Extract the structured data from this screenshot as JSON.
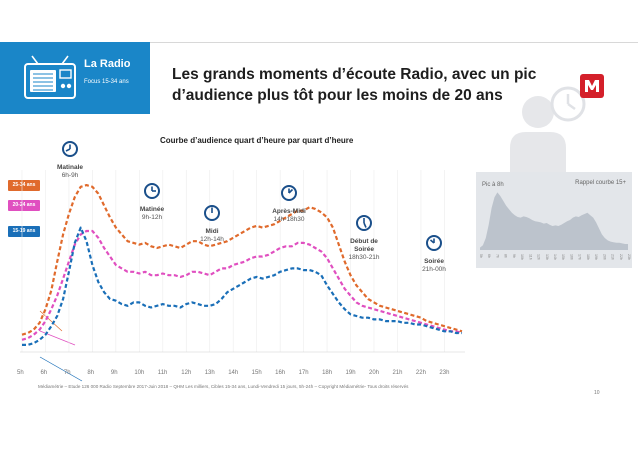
{
  "header": {
    "section_title": "La Radio",
    "section_subtitle": "Focus 15-34 ans",
    "main_title": "Les grands moments d’écoute Radio, avec un pic d’audience plus tôt pour les moins de 20 ans"
  },
  "colors": {
    "band": "#1a86c8",
    "series_25_34": "#e06a2c",
    "series_20_24": "#e04fc0",
    "series_15_19": "#1a6fb8",
    "logo": "#d4202a"
  },
  "moments": [
    {
      "label": "Matinale",
      "hours": "6h-9h"
    },
    {
      "label": "Matinée",
      "hours": "9h-12h"
    },
    {
      "label": "Midi",
      "hours": "12h-14h"
    },
    {
      "label": "Après-Midi",
      "hours": "14h-18h30"
    },
    {
      "label": "Début de Soirée",
      "hours": "18h30-21h"
    },
    {
      "label": "Soirée",
      "hours": "21h-00h"
    }
  ],
  "inset": {
    "left_label": "Pic à 8h",
    "right_label": "Rappel courbe 15+"
  },
  "footnote": "Médiamétrie – Etude 126 000 Radio Septembre 2017-Juin 2018 – QHM Les milliers, Cibles 15-34 ans, Lundi-Vendredi 15 jours, 5h-24h – Copyright Médiamétrie- Tous droits réservés",
  "page_number": "10",
  "chart_data": [
    {
      "type": "line",
      "title": "Courbe d’audience quart d’heure par quart d’heure",
      "x_labels": [
        "5h",
        "6h",
        "7h",
        "8h",
        "9h",
        "10h",
        "11h",
        "12h",
        "13h",
        "14h",
        "15h",
        "16h",
        "17h",
        "18h",
        "19h",
        "20h",
        "21h",
        "22h",
        "23h"
      ],
      "x": [
        5,
        5.25,
        5.5,
        5.75,
        6,
        6.25,
        6.5,
        6.75,
        7,
        7.25,
        7.5,
        7.75,
        8,
        8.25,
        8.5,
        8.75,
        9,
        9.25,
        9.5,
        9.75,
        10,
        10.25,
        10.5,
        10.75,
        11,
        11.25,
        11.5,
        11.75,
        12,
        12.25,
        12.5,
        12.75,
        13,
        13.25,
        13.5,
        13.75,
        14,
        14.25,
        14.5,
        14.75,
        15,
        15.25,
        15.5,
        15.75,
        16,
        16.25,
        16.5,
        16.75,
        17,
        17.25,
        17.5,
        17.75,
        18,
        18.25,
        18.5,
        18.75,
        19,
        19.25,
        19.5,
        19.75,
        20,
        20.25,
        20.5,
        20.75,
        21,
        21.25,
        21.5,
        21.75,
        22,
        22.25,
        22.5,
        22.75,
        23,
        23.25,
        23.5,
        23.75
      ],
      "series": [
        {
          "name": "25-34 ans",
          "values": [
            9,
            10,
            12,
            16,
            24,
            35,
            52,
            68,
            80,
            90,
            96,
            97,
            96,
            92,
            85,
            78,
            72,
            68,
            64,
            63,
            62,
            63,
            61,
            60,
            61,
            62,
            61,
            60,
            62,
            64,
            64,
            62,
            61,
            62,
            63,
            64,
            66,
            68,
            70,
            72,
            73,
            72,
            73,
            74,
            76,
            78,
            80,
            82,
            82,
            84,
            83,
            81,
            78,
            72,
            62,
            52,
            44,
            38,
            34,
            30,
            28,
            26,
            25,
            24,
            23,
            22,
            21,
            20,
            19,
            17,
            16,
            15,
            14,
            13,
            12,
            11
          ]
        },
        {
          "name": "20-24 ans",
          "values": [
            6,
            7,
            9,
            12,
            17,
            24,
            32,
            42,
            52,
            62,
            68,
            70,
            70,
            66,
            60,
            55,
            50,
            48,
            46,
            46,
            45,
            46,
            44,
            44,
            45,
            44,
            44,
            43,
            44,
            46,
            46,
            45,
            44,
            46,
            48,
            48,
            50,
            51,
            52,
            54,
            55,
            55,
            56,
            58,
            60,
            61,
            61,
            63,
            63,
            62,
            60,
            58,
            54,
            48,
            42,
            36,
            32,
            28,
            26,
            25,
            24,
            23,
            22,
            21,
            20,
            19,
            18,
            17,
            16,
            15,
            14,
            13,
            12,
            11,
            11,
            10
          ]
        },
        {
          "name": "15-19 ans",
          "values": [
            3,
            3,
            4,
            6,
            9,
            14,
            20,
            30,
            46,
            63,
            72,
            64,
            50,
            40,
            34,
            30,
            29,
            27,
            26,
            28,
            28,
            26,
            25,
            26,
            27,
            26,
            26,
            25,
            27,
            28,
            27,
            26,
            26,
            27,
            30,
            34,
            36,
            38,
            40,
            42,
            43,
            42,
            43,
            44,
            46,
            47,
            48,
            48,
            47,
            47,
            46,
            44,
            38,
            33,
            28,
            24,
            21,
            20,
            19,
            19,
            18,
            18,
            17,
            17,
            17,
            16,
            16,
            15,
            15,
            14,
            13,
            12,
            11,
            11,
            10,
            10
          ]
        }
      ]
    },
    {
      "type": "area",
      "title": "Rappel courbe 15+",
      "x_labels": [
        "5h",
        "6h",
        "7h",
        "8h",
        "9h",
        "10h",
        "11h",
        "12h",
        "13h",
        "14h",
        "15h",
        "16h",
        "17h",
        "18h",
        "19h",
        "20h",
        "21h",
        "22h",
        "23h"
      ],
      "series": [
        {
          "name": "15+",
          "values": [
            4,
            8,
            20,
            42,
            70,
            88,
            96,
            90,
            82,
            74,
            68,
            62,
            58,
            55,
            54,
            56,
            55,
            53,
            50,
            48,
            47,
            46,
            44,
            45,
            42,
            40,
            41,
            40,
            42,
            45,
            48,
            50,
            54,
            56,
            55,
            58,
            60,
            62,
            58,
            54,
            46,
            36,
            26,
            20,
            16,
            14,
            13,
            12,
            12,
            11,
            10,
            10
          ]
        }
      ]
    }
  ]
}
